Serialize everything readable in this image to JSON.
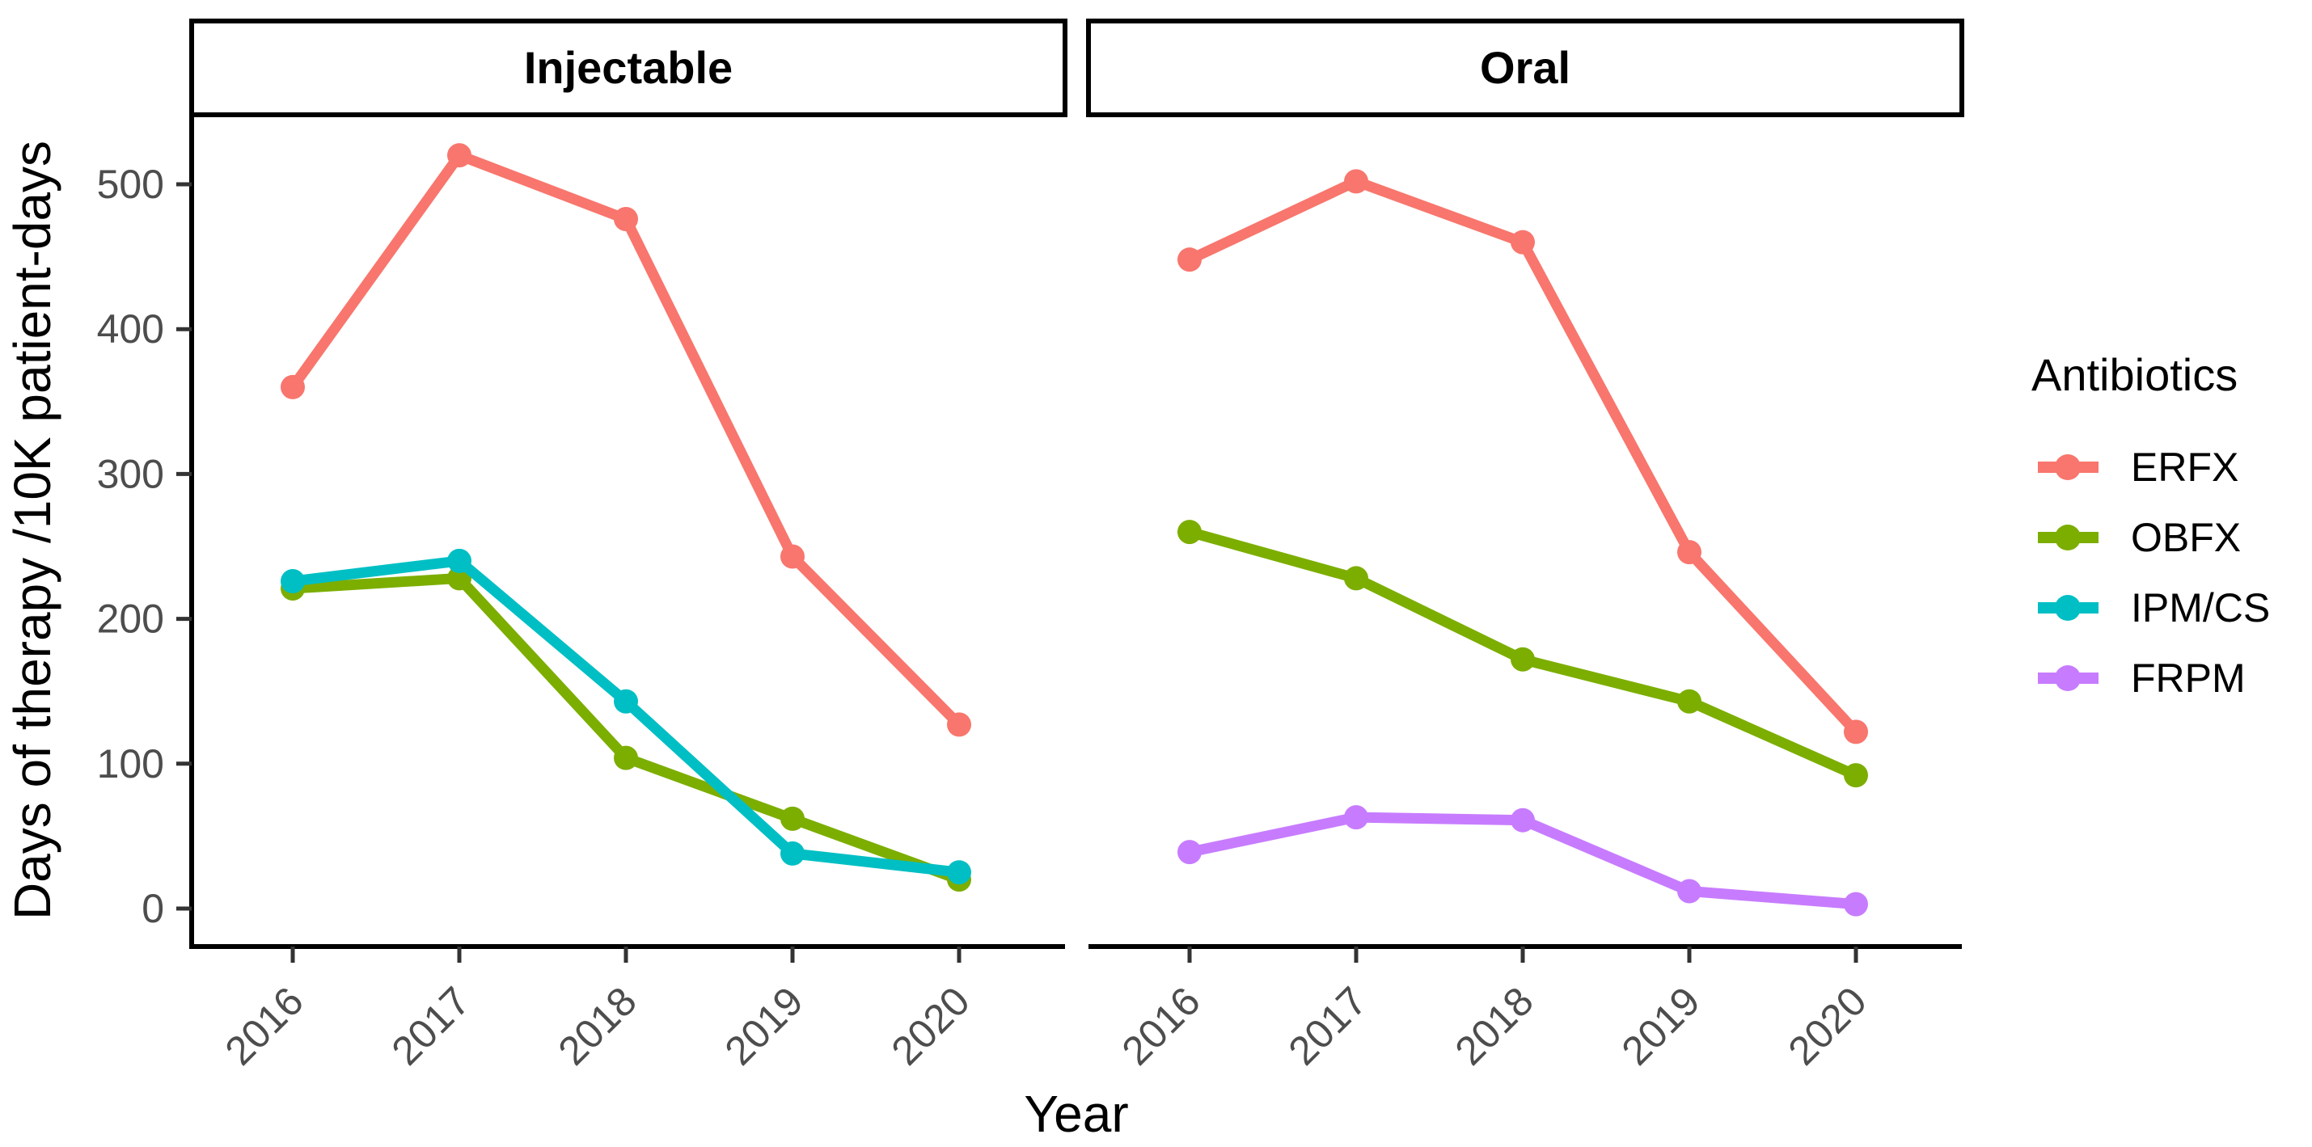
{
  "chart_data": {
    "type": "line",
    "title": "",
    "xlabel": "Year",
    "ylabel": "Days of therapy /10K patient-days",
    "x_categories": [
      "2016",
      "2017",
      "2018",
      "2019",
      "2020"
    ],
    "y_ticks": [
      0,
      100,
      200,
      300,
      400,
      500
    ],
    "ylim": [
      0,
      550
    ],
    "grid": false,
    "legend_position": "right",
    "facets": [
      {
        "label": "Injectable",
        "series": [
          {
            "name": "ERFX",
            "color": "#F8766D",
            "values": [
              360,
              520,
              476,
              243,
              127
            ]
          },
          {
            "name": "OBFX",
            "color": "#7CAE00",
            "values": [
              221,
              228,
              104,
              62,
              20
            ]
          },
          {
            "name": "IPM/CS",
            "color": "#00BFC4",
            "values": [
              226,
              240,
              143,
              38,
              25
            ]
          }
        ]
      },
      {
        "label": "Oral",
        "series": [
          {
            "name": "ERFX",
            "color": "#F8766D",
            "values": [
              448,
              502,
              460,
              246,
              122
            ]
          },
          {
            "name": "OBFX",
            "color": "#7CAE00",
            "values": [
              260,
              228,
              172,
              143,
              92
            ]
          },
          {
            "name": "FRPM",
            "color": "#C77CFF",
            "values": [
              39,
              63,
              61,
              12,
              3
            ]
          }
        ]
      }
    ],
    "legend": {
      "title": "Antibiotics",
      "entries": [
        {
          "label": "ERFX",
          "color": "#F8766D"
        },
        {
          "label": "OBFX",
          "color": "#7CAE00"
        },
        {
          "label": "IPM/CS",
          "color": "#00BFC4"
        },
        {
          "label": "FRPM",
          "color": "#C77CFF"
        }
      ]
    },
    "text_colors": {
      "tick_label": "#4D4D4D",
      "title": "#000000"
    }
  }
}
